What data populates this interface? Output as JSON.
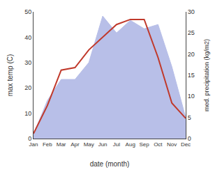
{
  "chart_data": {
    "type": "line",
    "categories": [
      "Jan",
      "Feb",
      "Mar",
      "Apr",
      "May",
      "Jun",
      "Jul",
      "Aug",
      "Sep",
      "Oct",
      "Nov",
      "Dec"
    ],
    "xlabel": "date (month)",
    "ylabel": "max temp (C)",
    "y2label": "med. precipitation (kg/m2)",
    "series": [
      {
        "type": "area",
        "axis": "y2",
        "color": "#b8bfe8",
        "values": [
          1,
          9,
          14,
          14,
          18,
          29,
          25,
          28,
          26,
          27,
          17,
          5
        ]
      },
      {
        "type": "line",
        "color": "#c0392b",
        "values": [
          2,
          13,
          27,
          28,
          35,
          40,
          45,
          47,
          47,
          32,
          14,
          8
        ]
      }
    ],
    "ylim": [
      0,
      50
    ],
    "yticks": [
      0,
      10,
      20,
      30,
      40,
      50
    ],
    "y2lim": [
      0,
      30
    ],
    "y2ticks": [
      0,
      5,
      10,
      15,
      20,
      25,
      30
    ],
    "grid": false
  }
}
